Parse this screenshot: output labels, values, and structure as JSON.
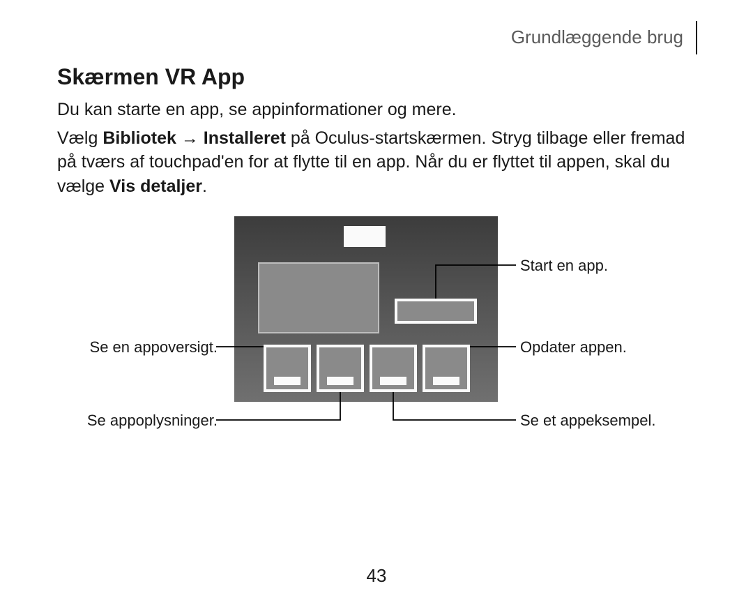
{
  "header": {
    "section": "Grundlæggende brug"
  },
  "title": "Skærmen VR App",
  "paragraphs": {
    "p1": "Du kan starte en app, se appinformationer og mere.",
    "p2a": "Vælg ",
    "p2b": "Bibliotek",
    "p2arrow": " → ",
    "p2c": "Installeret",
    "p2d": " på Oculus-startskærmen. Stryg tilbage eller fremad på tværs af touchpad'en for at flytte til en app. Når du er flyttet til appen, skal du vælge ",
    "p2e": "Vis detaljer",
    "p2f": "."
  },
  "callouts": {
    "start": "Start en app.",
    "update": "Opdater appen.",
    "example": "Se et appeksempel.",
    "overview": "Se en appoversigt.",
    "info": "Se appoplysninger."
  },
  "pageNumber": "43",
  "style": {
    "line_color": "#000000",
    "line_width": 1.8
  }
}
